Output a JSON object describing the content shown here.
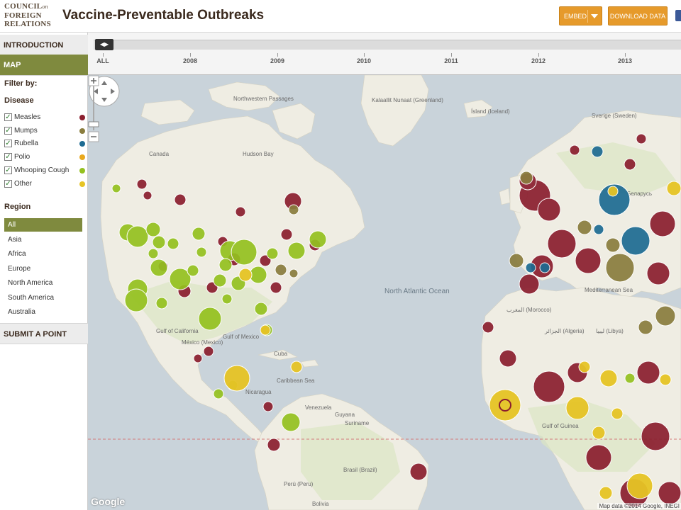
{
  "header": {
    "logo_line1": "COUNCIL",
    "logo_on": "on",
    "logo_line2": "FOREIGN",
    "logo_line3": "RELATIONS",
    "title": "Vaccine-Preventable Outbreaks",
    "embed_label": "EMBED",
    "download_label": "DOWNLOAD DATA",
    "share_icon": "facebook-icon"
  },
  "sidebar": {
    "nav_intro": "INTRODUCTION",
    "nav_map": "MAP",
    "filter_label": "Filter by:",
    "disease_label": "Disease",
    "diseases": [
      {
        "label": "Measles",
        "color": "#8b1e2e",
        "checked": true
      },
      {
        "label": "Mumps",
        "color": "#8a7d3e",
        "checked": true
      },
      {
        "label": "Rubella",
        "color": "#1d6b92",
        "checked": true
      },
      {
        "label": "Polio",
        "color": "#e9a81c",
        "checked": true
      },
      {
        "label": "Whooping Cough",
        "color": "#94c11f",
        "checked": true
      },
      {
        "label": "Other",
        "color": "#e6c425",
        "checked": true
      }
    ],
    "region_label": "Region",
    "regions": [
      "All",
      "Asia",
      "Africa",
      "Europe",
      "North America",
      "South America",
      "Australia"
    ],
    "active_region": "All",
    "nav_submit": "SUBMIT A POINT"
  },
  "timeline": {
    "handle_icon": "left-right-arrows-icon",
    "labels": [
      "ALL",
      "2008",
      "2009",
      "2010",
      "2011",
      "2012",
      "2013"
    ]
  },
  "map": {
    "google_label": "Google",
    "attribution": "Map data ©2014 Google, INEGI",
    "labels": {
      "northwest": "Northwestern Passages",
      "canada": "Canada",
      "hudson": "Hudson Bay",
      "kalaallit": "Kalaallit Nunaat (Greenland)",
      "island": "Ísland (Iceland)",
      "sverige": "Sverige (Sweden)",
      "north_atlantic": "North Atlantic Ocean",
      "gulf_california": "Gulf of California",
      "gulf_mexico": "Gulf of Mexico",
      "mexico": "México (Mexico)",
      "cuba": "Cuba",
      "nicaragua": "Nicaragua",
      "caribbean": "Caribbean Sea",
      "venezuela": "Venezuela",
      "guyana": "Guyana",
      "suriname": "Suriname",
      "brasil": "Brasil (Brazil)",
      "peru": "Perú (Peru)",
      "bolivia": "Bolivia",
      "morocco": "المغرب (Morocco)",
      "algeria": "الجزائر (Algeria)",
      "libya": "ليبيا (Libya)",
      "mediterranean": "Mediterranean Sea",
      "guinea": "Gulf of Guinea",
      "europe_city": "Беларусь"
    }
  }
}
